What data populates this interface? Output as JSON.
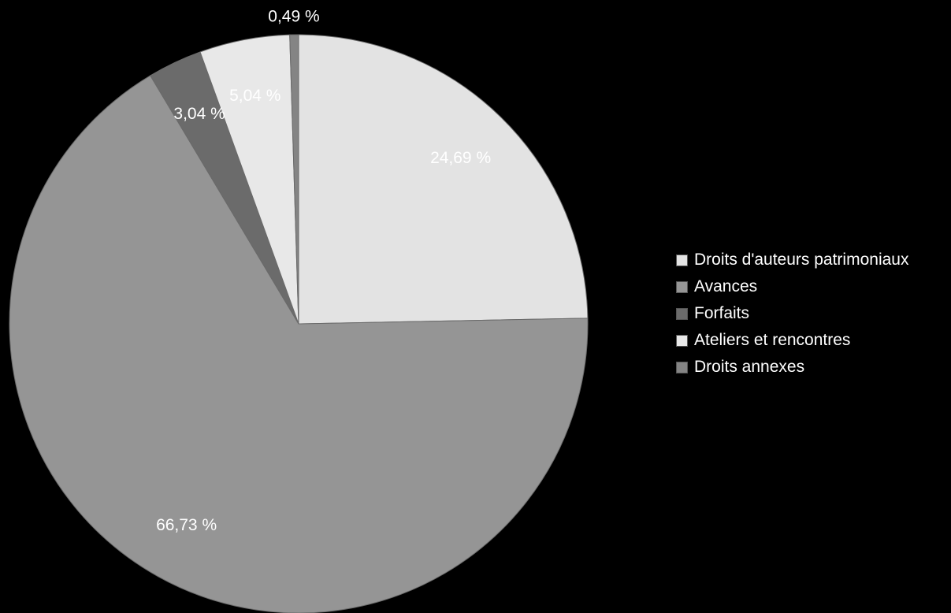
{
  "chart_data": {
    "type": "pie",
    "title": "",
    "legend_position": "right",
    "start_angle_deg": 0,
    "direction": "clockwise",
    "slices": [
      {
        "name": "Droits d'auteurs patrimoniaux",
        "value": 24.69,
        "label": "24,69 %",
        "color": "#e3e3e3",
        "label_color": "#ffffff"
      },
      {
        "name": "Avances",
        "value": 66.73,
        "label": "66,73 %",
        "color": "#959595",
        "label_color": "#ffffff"
      },
      {
        "name": "Forfaits",
        "value": 3.04,
        "label": "3,04 %",
        "color": "#6b6b6b",
        "label_color": "#ffffff"
      },
      {
        "name": "Ateliers et rencontres",
        "value": 5.04,
        "label": "5,04 %",
        "color": "#e8e8e8",
        "label_color": "#ffffff"
      },
      {
        "name": "Droits annexes",
        "value": 0.49,
        "label": "0,49 %",
        "color": "#848484",
        "label_color": "#ffffff",
        "label_outside": true
      }
    ]
  }
}
